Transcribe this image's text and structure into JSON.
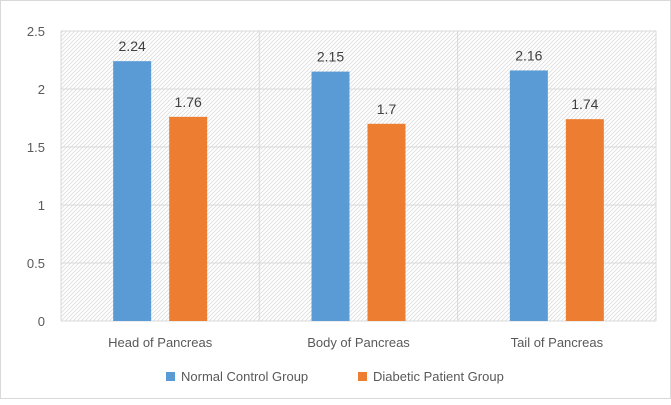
{
  "chart_data": {
    "type": "bar",
    "title": "",
    "xlabel": "",
    "ylabel": "",
    "categories": [
      "Head of Pancreas",
      "Body of Pancreas",
      "Tail of Pancreas"
    ],
    "series": [
      {
        "name": "Normal Control Group",
        "values": [
          2.24,
          2.15,
          2.16
        ],
        "color": "#5b9bd5"
      },
      {
        "name": "Diabetic Patient Group",
        "values": [
          1.76,
          1.7,
          1.74
        ],
        "color": "#ed7d31"
      }
    ],
    "ylim": [
      0,
      2.5
    ],
    "yticks": [
      "0",
      "0.5",
      "1",
      "1.5",
      "2",
      "2.5"
    ],
    "data_labels": [
      [
        "2.24",
        "2.15",
        "2.16"
      ],
      [
        "1.76",
        "1.7",
        "1.74"
      ]
    ],
    "grid": true,
    "legend_position": "bottom"
  }
}
